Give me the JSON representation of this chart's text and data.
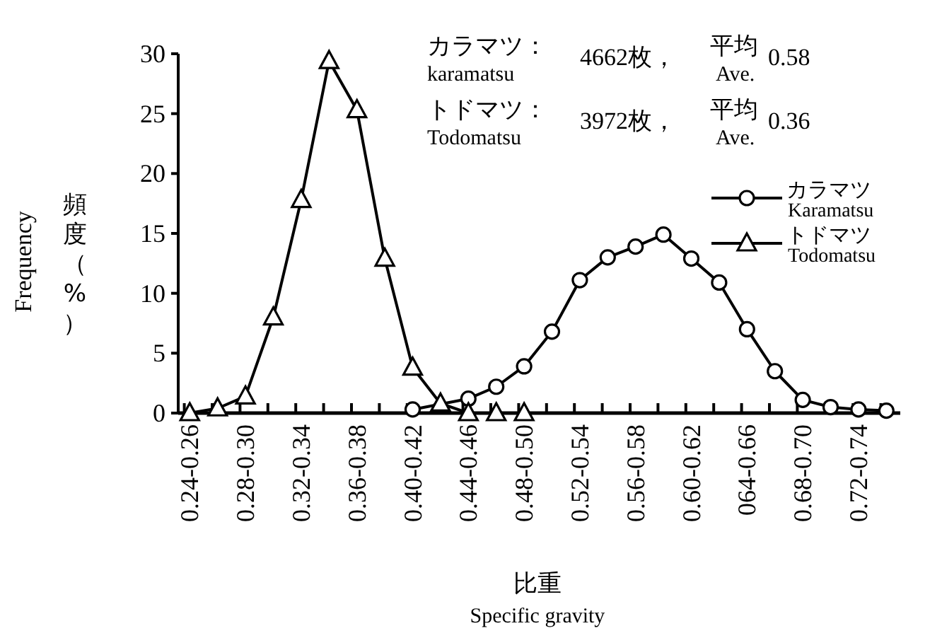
{
  "chart_data": {
    "type": "line",
    "xlabel": "比重\nSpecific gravity",
    "ylabel": "頻度（%）\nFrequency",
    "categories": [
      "0.24-0.26",
      null,
      "0.28-0.30",
      null,
      "0.32-0.34",
      null,
      "0.36-0.38",
      null,
      "0.40-0.42",
      null,
      "0.44-0.46",
      null,
      "0.48-0.50",
      null,
      "0.52-0.54",
      null,
      "0.56-0.58",
      null,
      "0.60-0.62",
      null,
      "064-0.66",
      null,
      "0.68-0.70",
      null,
      "0.72-0.74",
      null
    ],
    "series": [
      {
        "name": "カラマツ\nKaramatsu",
        "color": "#000000",
        "marker": "circle",
        "values": [
          null,
          null,
          null,
          null,
          null,
          null,
          null,
          null,
          0.3,
          null,
          1.2,
          2.2,
          3.9,
          6.8,
          11.1,
          13.0,
          13.9,
          14.9,
          12.9,
          10.9,
          7.0,
          3.5,
          1.1,
          0.5,
          0.3,
          0.2
        ]
      },
      {
        "name": "トドマツ\nTodomatsu",
        "color": "#000000",
        "marker": "triangle",
        "values": [
          0,
          0.4,
          1.4,
          8.0,
          17.8,
          29.4,
          25.3,
          12.9,
          3.8,
          0.8,
          0,
          0,
          0,
          null,
          null,
          null,
          null,
          null,
          null,
          null,
          null,
          null,
          null,
          null,
          null,
          null
        ]
      }
    ],
    "ylim": [
      0,
      30
    ],
    "yticks": [
      0,
      5,
      10,
      15,
      20,
      25,
      30
    ],
    "grid": false,
    "legend": "right",
    "line_style": "solid",
    "annotations": [
      "カラマツ：\nkaramatsu",
      "4662枚，",
      "平均\nAve.",
      "0.58",
      "トドマツ：\nTodomatsu",
      "3972枚，",
      "平均\nAve.",
      "0.36"
    ]
  }
}
